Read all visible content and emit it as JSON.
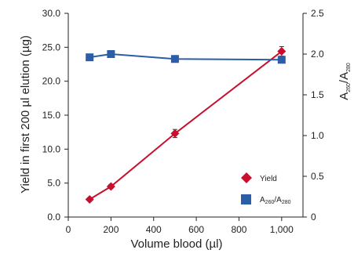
{
  "chart_data": {
    "type": "line",
    "xlabel": "Volume blood (µl)",
    "ylabel_left": "Yield in first 200 µl elution (µg)",
    "ylabel_right": {
      "base": "A",
      "sub1": "260",
      "sep": "/A",
      "sub2": "280"
    },
    "x_ticks": [
      0,
      200,
      400,
      600,
      800,
      1000
    ],
    "x_tick_labels": [
      "0",
      "200",
      "400",
      "600",
      "800",
      "1,000"
    ],
    "y_left_ticks": [
      0,
      5,
      10,
      15,
      20,
      25,
      30
    ],
    "y_left_tick_labels": [
      "0.0",
      "5.0",
      "10.0",
      "15.0",
      "20.0",
      "25.0",
      "30.0"
    ],
    "y_right_ticks": [
      0,
      0.5,
      1.0,
      1.5,
      2.0,
      2.5
    ],
    "y_right_tick_labels": [
      "0",
      "0.5",
      "1.0",
      "1.5",
      "2.0",
      "2.5"
    ],
    "xlim": [
      0,
      1100
    ],
    "ylim_left": [
      0,
      30
    ],
    "ylim_right": [
      0,
      2.5
    ],
    "grid": false,
    "legend_position": "bottom-right",
    "series": [
      {
        "name": "Yield",
        "axis": "left",
        "marker": "diamond",
        "color": "#c8102e",
        "x": [
          100,
          200,
          500,
          1000
        ],
        "y": [
          2.6,
          4.5,
          12.3,
          24.4
        ],
        "error": [
          0.2,
          0.3,
          0.6,
          0.7
        ]
      },
      {
        "name": {
          "base": "A",
          "sub1": "260",
          "sep": "/A",
          "sub2": "280"
        },
        "axis": "right",
        "marker": "square",
        "color": "#2b5ea7",
        "x": [
          100,
          200,
          500,
          1000
        ],
        "y": [
          1.96,
          2.0,
          1.94,
          1.93
        ],
        "error": [
          0,
          0,
          0,
          0
        ]
      }
    ]
  }
}
